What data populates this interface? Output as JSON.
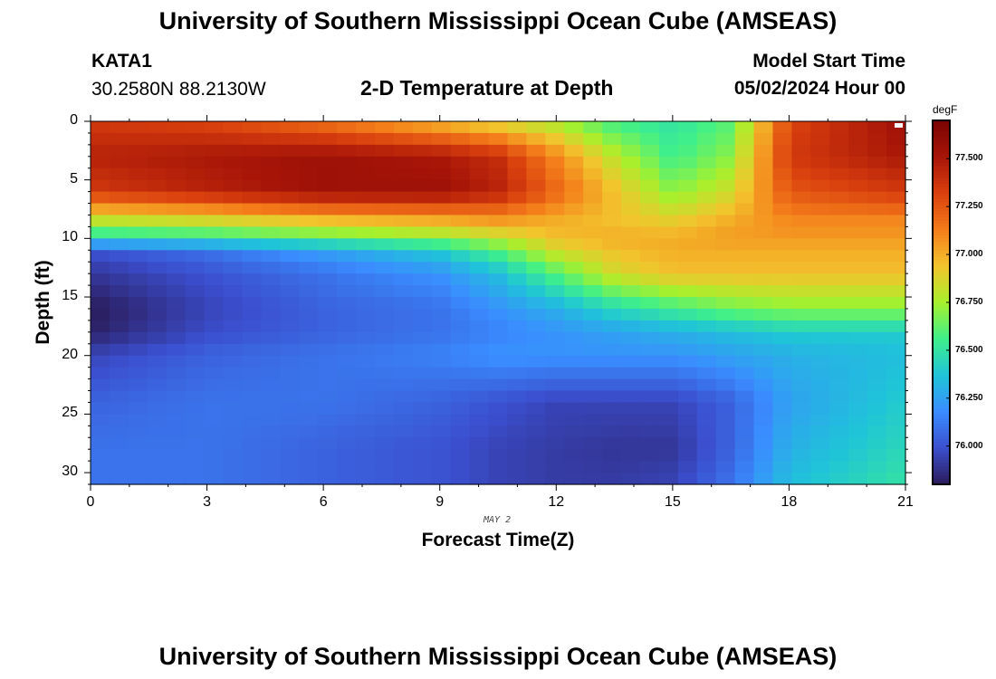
{
  "page": {
    "title_top": "University of Southern Mississippi Ocean Cube (AMSEAS)",
    "title_bottom": "University of Southern Mississippi Ocean Cube (AMSEAS)",
    "station": "KATA1",
    "coords": "30.2580N  88.2130W",
    "plot_title": "2-D Temperature at Depth",
    "model_start_label": "Model Start Time",
    "model_start_value": "05/02/2024 Hour 00",
    "date_label": "MAY 2"
  },
  "chart_data": {
    "type": "heatmap",
    "title": "2-D Temperature at Depth",
    "xlabel": "Forecast Time(Z)",
    "ylabel": "Depth (ft)",
    "x_ticks": [
      "0",
      "3",
      "6",
      "9",
      "12",
      "15",
      "18",
      "21"
    ],
    "y_ticks": [
      "0",
      "5",
      "10",
      "15",
      "20",
      "25",
      "30"
    ],
    "xlim": [
      0,
      21
    ],
    "ylim": [
      0,
      31
    ],
    "colorbar": {
      "unit": "degF",
      "min": 75.8,
      "max": 77.7,
      "ticks": [
        "77.500",
        "77.250",
        "77.000",
        "76.750",
        "76.500",
        "76.250",
        "76.000"
      ],
      "colors": [
        "#2b1b5a",
        "#3b4fcf",
        "#3a8dff",
        "#1fc4d8",
        "#3ff08a",
        "#a7f02c",
        "#f3c42d",
        "#f47c1a",
        "#d9400e",
        "#a71508",
        "#7a0403"
      ]
    },
    "times": [
      0,
      3,
      6,
      9,
      10.5,
      12,
      13.5,
      15,
      16.5,
      18,
      21
    ],
    "depths": [
      0,
      3,
      6,
      8.5,
      10,
      11,
      13,
      16,
      18,
      20,
      24,
      28,
      31
    ],
    "values": [
      [
        77.35,
        77.3,
        77.15,
        76.95,
        76.85,
        76.75,
        76.55,
        76.5,
        76.6,
        77.3,
        77.55
      ],
      [
        77.45,
        77.5,
        77.55,
        77.5,
        77.4,
        77.1,
        76.8,
        76.55,
        76.7,
        77.35,
        77.5
      ],
      [
        77.35,
        77.45,
        77.55,
        77.55,
        77.45,
        77.2,
        76.95,
        76.7,
        76.85,
        77.25,
        77.35
      ],
      [
        76.8,
        76.85,
        76.95,
        77.0,
        77.05,
        77.0,
        76.95,
        76.9,
        77.0,
        77.1,
        77.1
      ],
      [
        76.45,
        76.5,
        76.6,
        76.7,
        76.8,
        76.95,
        77.0,
        77.0,
        77.05,
        77.05,
        77.05
      ],
      [
        76.0,
        76.1,
        76.25,
        76.4,
        76.6,
        76.85,
        76.95,
        77.0,
        77.0,
        77.0,
        77.0
      ],
      [
        75.9,
        76.0,
        76.1,
        76.2,
        76.35,
        76.6,
        76.85,
        76.95,
        76.95,
        76.95,
        76.95
      ],
      [
        75.8,
        75.95,
        76.05,
        76.1,
        76.2,
        76.3,
        76.45,
        76.55,
        76.65,
        76.7,
        76.7
      ],
      [
        75.82,
        75.98,
        76.05,
        76.1,
        76.15,
        76.2,
        76.25,
        76.3,
        76.35,
        76.4,
        76.4
      ],
      [
        75.95,
        76.05,
        76.1,
        76.15,
        76.2,
        76.2,
        76.2,
        76.2,
        76.25,
        76.3,
        76.35
      ],
      [
        76.05,
        76.1,
        76.1,
        76.05,
        76.0,
        75.95,
        75.95,
        75.95,
        76.05,
        76.25,
        76.4
      ],
      [
        76.1,
        76.1,
        76.05,
        76.0,
        75.95,
        75.92,
        75.9,
        75.9,
        76.05,
        76.3,
        76.45
      ],
      [
        76.1,
        76.1,
        76.05,
        76.0,
        75.95,
        75.92,
        75.92,
        75.95,
        76.1,
        76.35,
        76.5
      ]
    ]
  }
}
